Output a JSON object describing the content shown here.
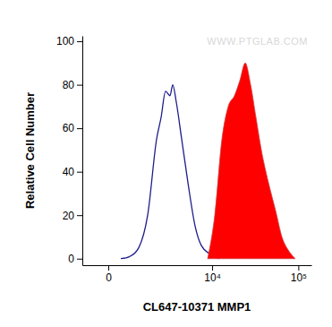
{
  "chart_data": {
    "type": "histogram",
    "x_label": "CL647-10371 MMP1",
    "y_label": "Relative Cell Number",
    "annotation": "WWW.PTGLAB.COM",
    "log": "x",
    "xlim": [
      -695,
      140800
    ],
    "xticks": [
      0,
      {
        "value": 10000,
        "label": "10⁴"
      },
      {
        "value": 100000,
        "label": "10⁵"
      }
    ],
    "ylim": [
      -3,
      102.5
    ],
    "yticks": [
      0,
      20,
      40,
      60,
      80,
      100
    ],
    "grid": false,
    "series": [
      {
        "type": "line",
        "color": "#1c1c8a",
        "x": [
          278,
          539,
          870,
          1287,
          1812,
          2126,
          2476,
          2871,
          3130,
          3505,
          4139,
          4999,
          6167,
          7388,
          9508,
          12187
        ],
        "values": [
          0,
          1,
          5,
          20,
          55,
          65,
          77,
          75,
          80,
          72,
          55,
          35,
          15,
          6,
          2,
          0
        ]
      },
      {
        "type": "area",
        "color": "#ff0000",
        "x": [
          8818,
          10767,
          13119,
          15567,
          18450,
          21330,
          24606,
          28425,
          32772,
          37796,
          45630,
          55160,
          65052,
          76604,
          92416
        ],
        "values": [
          0,
          20,
          55,
          70,
          75,
          82,
          90,
          80,
          65,
          50,
          35,
          22,
          10,
          4,
          0
        ]
      }
    ]
  }
}
